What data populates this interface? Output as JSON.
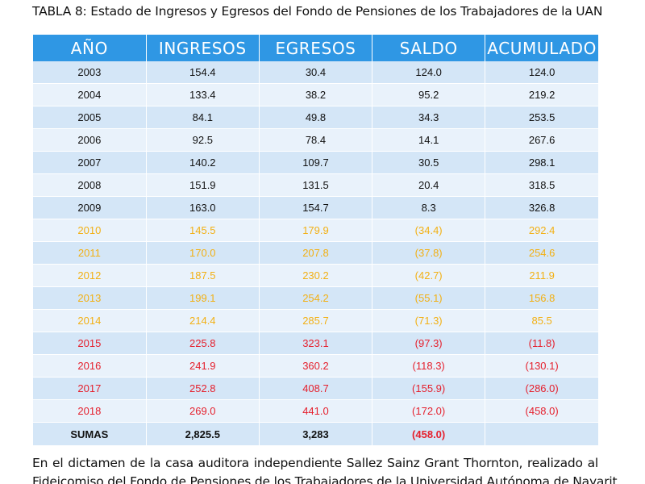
{
  "caption": "TABLA 8: Estado de Ingresos y Egresos del Fondo de Pensiones de los Trabajadores de la UAN",
  "table": {
    "headers": [
      "AÑO",
      "INGRESOS",
      "EGRESOS",
      "SALDO",
      "ACUMULADO"
    ],
    "rows": [
      {
        "year": "2003",
        "ingresos": "154.4",
        "egresos": "30.4",
        "saldo": "124.0",
        "acumulado": "124.0",
        "status": "normal"
      },
      {
        "year": "2004",
        "ingresos": "133.4",
        "egresos": "38.2",
        "saldo": "95.2",
        "acumulado": "219.2",
        "status": "normal"
      },
      {
        "year": "2005",
        "ingresos": "84.1",
        "egresos": "49.8",
        "saldo": "34.3",
        "acumulado": "253.5",
        "status": "normal"
      },
      {
        "year": "2006",
        "ingresos": "92.5",
        "egresos": "78.4",
        "saldo": "14.1",
        "acumulado": "267.6",
        "status": "normal"
      },
      {
        "year": "2007",
        "ingresos": "140.2",
        "egresos": "109.7",
        "saldo": "30.5",
        "acumulado": "298.1",
        "status": "normal"
      },
      {
        "year": "2008",
        "ingresos": "151.9",
        "egresos": "131.5",
        "saldo": "20.4",
        "acumulado": "318.5",
        "status": "normal"
      },
      {
        "year": "2009",
        "ingresos": "163.0",
        "egresos": "154.7",
        "saldo": "8.3",
        "acumulado": "326.8",
        "status": "normal"
      },
      {
        "year": "2010",
        "ingresos": "145.5",
        "egresos": "179.9",
        "saldo": "(34.4)",
        "acumulado": "292.4",
        "status": "warning"
      },
      {
        "year": "2011",
        "ingresos": "170.0",
        "egresos": "207.8",
        "saldo": "(37.8)",
        "acumulado": "254.6",
        "status": "warning"
      },
      {
        "year": "2012",
        "ingresos": "187.5",
        "egresos": "230.2",
        "saldo": "(42.7)",
        "acumulado": "211.9",
        "status": "warning"
      },
      {
        "year": "2013",
        "ingresos": "199.1",
        "egresos": "254.2",
        "saldo": "(55.1)",
        "acumulado": "156.8",
        "status": "warning"
      },
      {
        "year": "2014",
        "ingresos": "214.4",
        "egresos": "285.7",
        "saldo": "(71.3)",
        "acumulado": "85.5",
        "status": "warning"
      },
      {
        "year": "2015",
        "ingresos": "225.8",
        "egresos": "323.1",
        "saldo": "(97.3)",
        "acumulado": "(11.8)",
        "status": "negative"
      },
      {
        "year": "2016",
        "ingresos": "241.9",
        "egresos": "360.2",
        "saldo": "(118.3)",
        "acumulado": "(130.1)",
        "status": "negative"
      },
      {
        "year": "2017",
        "ingresos": "252.8",
        "egresos": "408.7",
        "saldo": "(155.9)",
        "acumulado": "(286.0)",
        "status": "negative"
      },
      {
        "year": "2018",
        "ingresos": "269.0",
        "egresos": "441.0",
        "saldo": "(172.0)",
        "acumulado": "(458.0)",
        "status": "negative"
      }
    ],
    "totals": {
      "label": "SUMAS",
      "ingresos": "2,825.5",
      "egresos": "3,283",
      "saldo": "(458.0)",
      "acumulado": ""
    }
  },
  "colors": {
    "header_bg": "#2f97e4",
    "row_dark": "#d4e6f7",
    "row_light": "#e9f2fb",
    "warning_text": "#f2b014",
    "negative_text": "#e5202d"
  },
  "body_lines": [
    "En el dictamen de la casa auditora independiente Sallez  Sainz Grant Thornton, realizado al",
    "Fideicomiso del Fondo de Pensiones de los Trabajadores de la Universidad Autónoma de Nayarit,"
  ]
}
